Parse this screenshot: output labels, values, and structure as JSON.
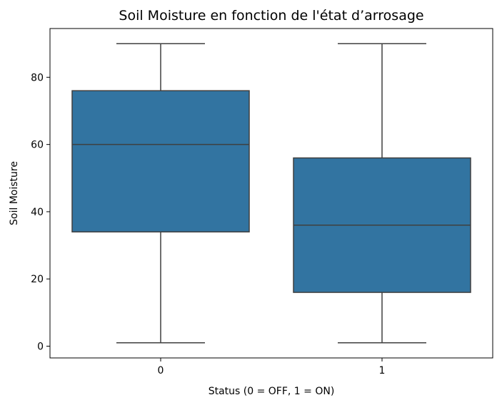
{
  "chart_data": {
    "type": "box",
    "title": "Soil Moisture en fonction de l'état d’arrosage",
    "xlabel": "Status (0 = OFF, 1 = ON)",
    "ylabel": "Soil Moisture",
    "categories": [
      "0",
      "1"
    ],
    "yticks": [
      0,
      20,
      40,
      60,
      80
    ],
    "ylim": [
      -3.5,
      94.5
    ],
    "grid": false,
    "boxes": [
      {
        "category": "0",
        "whisker_low": 1,
        "q1": 34,
        "median": 60,
        "q3": 76,
        "whisker_high": 90
      },
      {
        "category": "1",
        "whisker_low": 1,
        "q1": 16,
        "median": 36,
        "q3": 56,
        "whisker_high": 90
      }
    ],
    "colors": {
      "box_fill": "#3274a1",
      "line": "#3f3f3f",
      "axis": "#000000"
    }
  }
}
